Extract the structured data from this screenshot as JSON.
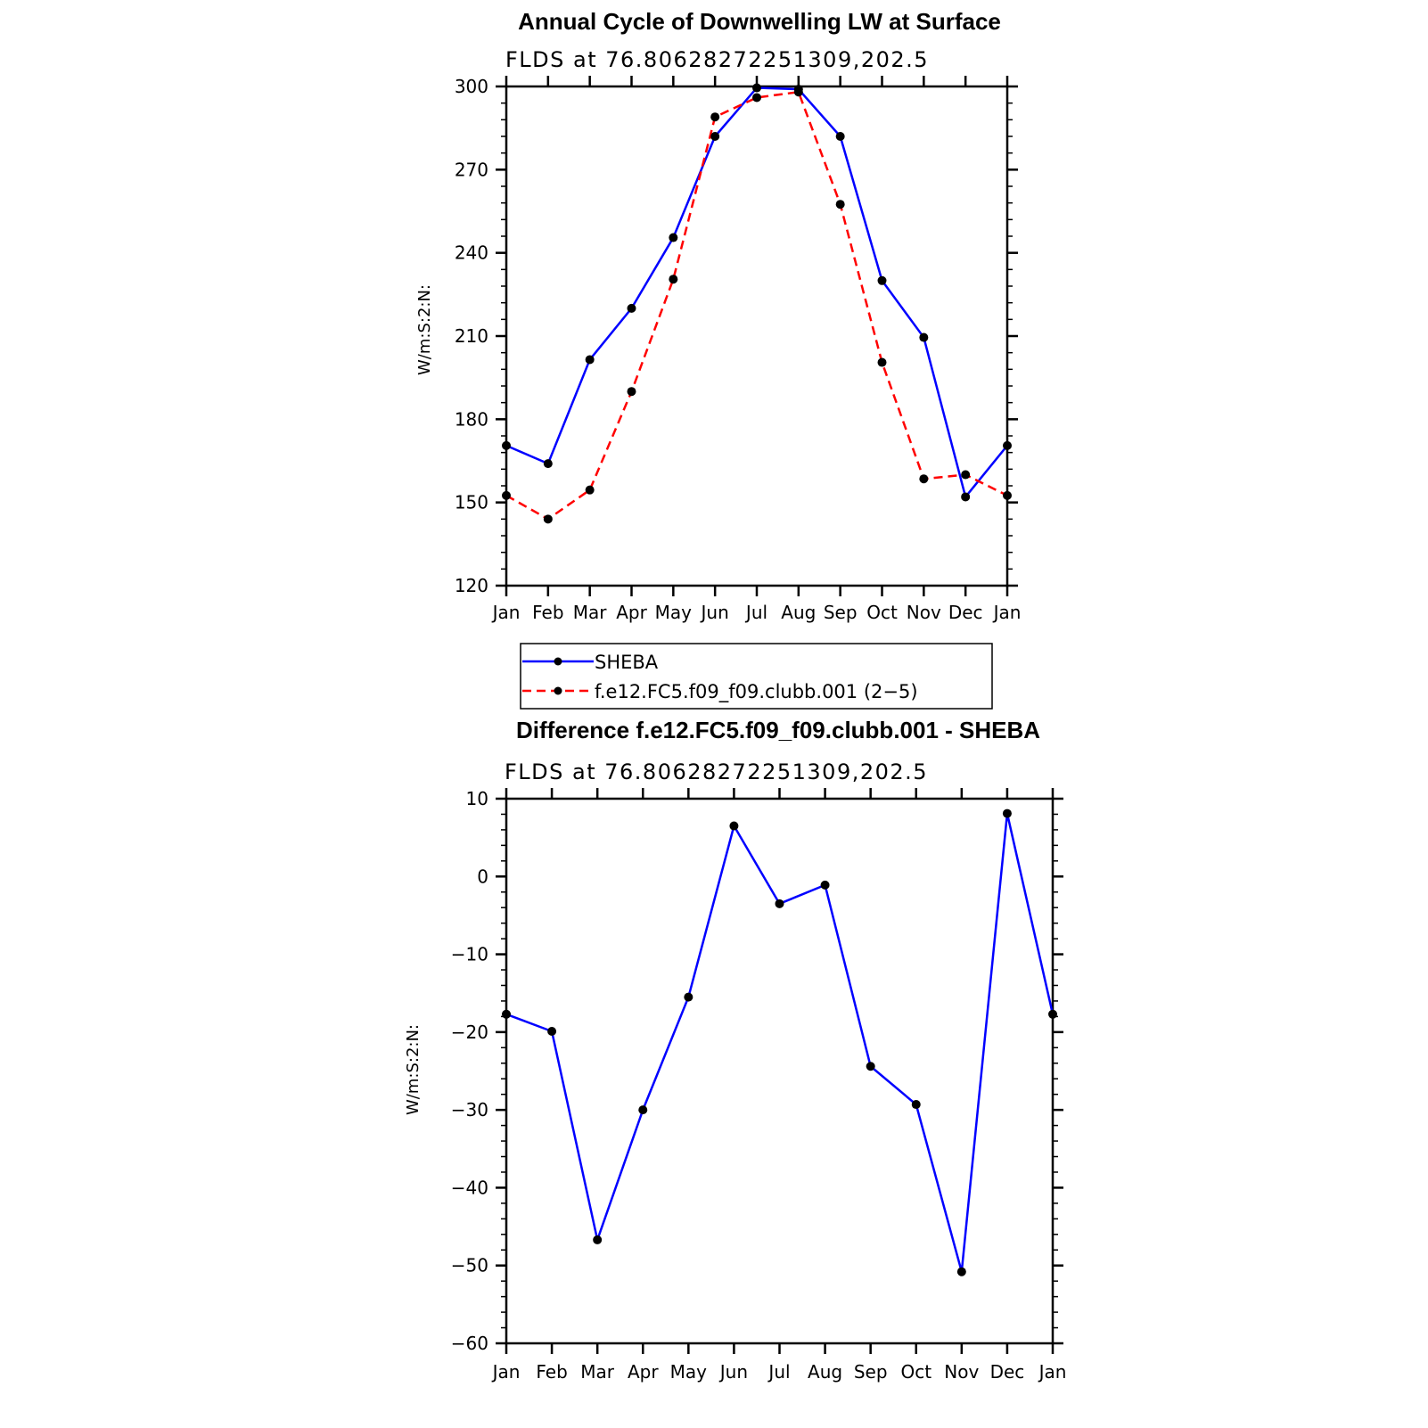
{
  "colors": {
    "sheba": "#0000ff",
    "model": "#ff0000",
    "markers": "#000000",
    "axes": "#000000"
  },
  "chart_data": [
    {
      "type": "line",
      "title": "Annual Cycle of Downwelling LW at Surface",
      "subtitle": "FLDS at 76.80628272251309,202.5",
      "ylabel": "W/m:S:2:N:",
      "xlabel": "",
      "categories": [
        "Jan",
        "Feb",
        "Mar",
        "Apr",
        "May",
        "Jun",
        "Jul",
        "Aug",
        "Sep",
        "Oct",
        "Nov",
        "Dec",
        "Jan"
      ],
      "ylim": [
        120,
        300
      ],
      "yticks": [
        120,
        150,
        180,
        210,
        240,
        270,
        300
      ],
      "series": [
        {
          "name": "SHEBA",
          "style": "solid",
          "values": [
            170.5,
            164.0,
            201.5,
            220.0,
            245.5,
            282.0,
            299.5,
            299.0,
            282.0,
            230.0,
            209.5,
            152.0,
            170.5
          ]
        },
        {
          "name": "f.e12.FC5.f09_f09.clubb.001 (2−5)",
          "style": "dashed",
          "values": [
            152.5,
            144.0,
            154.5,
            190.0,
            230.5,
            289.0,
            296.0,
            298.0,
            257.5,
            200.5,
            158.5,
            160.0,
            152.5
          ]
        }
      ],
      "legend": {
        "placement": "below",
        "entries": [
          "SHEBA",
          "f.e12.FC5.f09_f09.clubb.001 (2−5)"
        ]
      }
    },
    {
      "type": "line",
      "title": "Difference f.e12.FC5.f09_f09.clubb.001 - SHEBA",
      "subtitle": "FLDS at 76.80628272251309,202.5",
      "ylabel": "W/m:S:2:N:",
      "xlabel": "",
      "categories": [
        "Jan",
        "Feb",
        "Mar",
        "Apr",
        "May",
        "Jun",
        "Jul",
        "Aug",
        "Sep",
        "Oct",
        "Nov",
        "Dec",
        "Jan"
      ],
      "ylim": [
        -60,
        10
      ],
      "yticks": [
        -60,
        -50,
        -40,
        -30,
        -20,
        -10,
        0,
        10
      ],
      "ytick_labels": [
        "−60",
        "−50",
        "−40",
        "−30",
        "−20",
        "−10",
        "0",
        "10"
      ],
      "series": [
        {
          "name": "",
          "style": "solid",
          "values": [
            -17.7,
            -19.9,
            -46.7,
            -30.0,
            -15.5,
            6.5,
            -3.5,
            -1.1,
            -24.4,
            -29.3,
            -50.8,
            8.1,
            -17.7
          ]
        }
      ]
    }
  ]
}
